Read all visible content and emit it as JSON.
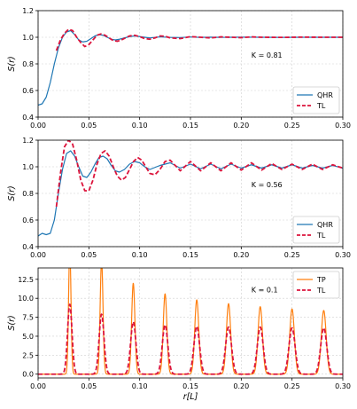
{
  "chart_data": [
    {
      "type": "line",
      "xlabel": "",
      "ylabel": "S(r)",
      "xlim": [
        0.0,
        0.3
      ],
      "ylim": [
        0.4,
        1.2
      ],
      "xticks": [
        "0.00",
        "0.05",
        "0.10",
        "0.15",
        "0.20",
        "0.25",
        "0.30"
      ],
      "yticks": [
        "0.4",
        "0.6",
        "0.8",
        "1.0",
        "1.2"
      ],
      "grid": true,
      "legend": "lower-right",
      "annotation": "K = 0.81",
      "series": [
        {
          "name": "QHR",
          "color": "#1f77b4",
          "style": "solid",
          "x": [
            0.0,
            0.004,
            0.008,
            0.012,
            0.016,
            0.02,
            0.024,
            0.028,
            0.032,
            0.036,
            0.04,
            0.044,
            0.048,
            0.052,
            0.056,
            0.06,
            0.064,
            0.068,
            0.072,
            0.076,
            0.08,
            0.085,
            0.09,
            0.095,
            0.1,
            0.11,
            0.12,
            0.13,
            0.14,
            0.15,
            0.16,
            0.17,
            0.18,
            0.19,
            0.2,
            0.22,
            0.24,
            0.26,
            0.28,
            0.3
          ],
          "y": [
            0.49,
            0.5,
            0.55,
            0.66,
            0.8,
            0.92,
            1.0,
            1.04,
            1.05,
            1.02,
            0.98,
            0.965,
            0.97,
            0.99,
            1.01,
            1.02,
            1.015,
            1.0,
            0.985,
            0.98,
            0.985,
            0.995,
            1.005,
            1.01,
            1.005,
            0.995,
            1.003,
            0.999,
            0.998,
            1.002,
            0.999,
            1.001,
            0.999,
            1.0,
            1.001,
            1.0,
            0.999,
            1.0,
            1.0,
            1.0
          ]
        },
        {
          "name": "TL",
          "color": "#dc143c",
          "style": "dashed",
          "x": [
            0.018,
            0.022,
            0.026,
            0.03,
            0.034,
            0.038,
            0.042,
            0.046,
            0.05,
            0.054,
            0.058,
            0.062,
            0.066,
            0.07,
            0.074,
            0.078,
            0.082,
            0.086,
            0.09,
            0.095,
            0.1,
            0.105,
            0.11,
            0.115,
            0.12,
            0.125,
            0.13,
            0.14,
            0.15,
            0.16,
            0.17,
            0.18,
            0.19,
            0.2,
            0.21,
            0.22,
            0.24,
            0.26,
            0.28,
            0.3
          ],
          "y": [
            0.9,
            0.98,
            1.03,
            1.06,
            1.05,
            1.0,
            0.96,
            0.93,
            0.945,
            0.98,
            1.015,
            1.025,
            1.015,
            0.995,
            0.975,
            0.97,
            0.98,
            0.995,
            1.01,
            1.015,
            1.005,
            0.99,
            0.985,
            0.995,
            1.01,
            1.008,
            0.995,
            0.99,
            1.005,
            1.0,
            0.995,
            1.003,
            1.0,
            0.997,
            1.003,
            1.0,
            0.999,
            1.001,
            1.0,
            1.0
          ]
        }
      ]
    },
    {
      "type": "line",
      "xlabel": "",
      "ylabel": "S(r)",
      "xlim": [
        0.0,
        0.3
      ],
      "ylim": [
        0.4,
        1.2
      ],
      "xticks": [
        "0.00",
        "0.05",
        "0.10",
        "0.15",
        "0.20",
        "0.25",
        "0.30"
      ],
      "yticks": [
        "0.4",
        "0.6",
        "0.8",
        "1.0",
        "1.2"
      ],
      "grid": true,
      "legend": "lower-right",
      "annotation": "K = 0.56",
      "series": [
        {
          "name": "QHR",
          "color": "#1f77b4",
          "style": "solid",
          "x": [
            0.0,
            0.004,
            0.008,
            0.012,
            0.016,
            0.02,
            0.024,
            0.028,
            0.032,
            0.036,
            0.04,
            0.044,
            0.048,
            0.052,
            0.056,
            0.06,
            0.064,
            0.068,
            0.072,
            0.076,
            0.08,
            0.085,
            0.09,
            0.095,
            0.1,
            0.105,
            0.11,
            0.12,
            0.13,
            0.14,
            0.15,
            0.16,
            0.17,
            0.18,
            0.19,
            0.2,
            0.21,
            0.22,
            0.23,
            0.24,
            0.25,
            0.26,
            0.27,
            0.28,
            0.29,
            0.3
          ],
          "y": [
            0.48,
            0.5,
            0.49,
            0.5,
            0.6,
            0.8,
            0.98,
            1.1,
            1.12,
            1.08,
            1.0,
            0.93,
            0.92,
            0.96,
            1.02,
            1.07,
            1.08,
            1.06,
            1.01,
            0.97,
            0.96,
            0.98,
            1.02,
            1.04,
            1.03,
            1.0,
            0.98,
            1.01,
            1.03,
            0.99,
            1.02,
            0.985,
            1.02,
            0.985,
            1.02,
            0.99,
            1.015,
            0.99,
            1.015,
            0.99,
            1.015,
            0.99,
            1.01,
            0.99,
            1.01,
            0.99
          ]
        },
        {
          "name": "TL",
          "color": "#dc143c",
          "style": "dashed",
          "x": [
            0.018,
            0.022,
            0.026,
            0.03,
            0.034,
            0.038,
            0.042,
            0.046,
            0.05,
            0.054,
            0.058,
            0.062,
            0.066,
            0.07,
            0.074,
            0.078,
            0.082,
            0.086,
            0.09,
            0.094,
            0.098,
            0.102,
            0.106,
            0.11,
            0.115,
            0.12,
            0.125,
            0.13,
            0.14,
            0.15,
            0.16,
            0.17,
            0.18,
            0.19,
            0.2,
            0.21,
            0.22,
            0.23,
            0.24,
            0.25,
            0.26,
            0.27,
            0.28,
            0.29,
            0.3
          ],
          "y": [
            0.7,
            0.95,
            1.15,
            1.2,
            1.17,
            1.05,
            0.9,
            0.82,
            0.82,
            0.9,
            1.02,
            1.1,
            1.12,
            1.08,
            1.0,
            0.93,
            0.9,
            0.92,
            0.98,
            1.04,
            1.07,
            1.05,
            1.0,
            0.95,
            0.94,
            0.98,
            1.04,
            1.05,
            0.97,
            1.04,
            0.97,
            1.03,
            0.97,
            1.03,
            0.975,
            1.03,
            0.975,
            1.025,
            0.98,
            1.02,
            0.98,
            1.02,
            0.98,
            1.015,
            0.99
          ]
        }
      ]
    },
    {
      "type": "line",
      "xlabel": "r[L]",
      "ylabel": "S(r)",
      "xlim": [
        0.0,
        0.3
      ],
      "ylim": [
        -0.5,
        14.0
      ],
      "xticks": [
        "0.00",
        "0.05",
        "0.10",
        "0.15",
        "0.20",
        "0.25",
        "0.30"
      ],
      "yticks": [
        "0.0",
        "2.5",
        "5.0",
        "7.5",
        "10.0",
        "12.5"
      ],
      "grid": true,
      "legend": "upper-right",
      "annotation": "K = 0.1",
      "peaks_x": [
        0.0312,
        0.0625,
        0.0937,
        0.125,
        0.1562,
        0.1875,
        0.2187,
        0.25,
        0.2812
      ],
      "series": [
        {
          "name": "TP",
          "color": "#ff7f0e",
          "style": "solid",
          "peak_heights": [
            16.5,
            15.0,
            12.0,
            10.6,
            9.8,
            9.3,
            8.9,
            8.6,
            8.4
          ],
          "peak_widths": [
            0.0012,
            0.0014,
            0.0016,
            0.0018,
            0.002,
            0.0021,
            0.0022,
            0.0023,
            0.0024
          ]
        },
        {
          "name": "TL",
          "color": "#dc143c",
          "style": "dashed",
          "peak_heights": [
            9.2,
            7.9,
            6.9,
            6.5,
            6.3,
            6.2,
            6.2,
            6.1,
            6.1
          ],
          "peak_widths": [
            0.0022,
            0.0024,
            0.0026,
            0.0027,
            0.0028,
            0.0029,
            0.0029,
            0.003,
            0.003
          ]
        }
      ]
    }
  ]
}
